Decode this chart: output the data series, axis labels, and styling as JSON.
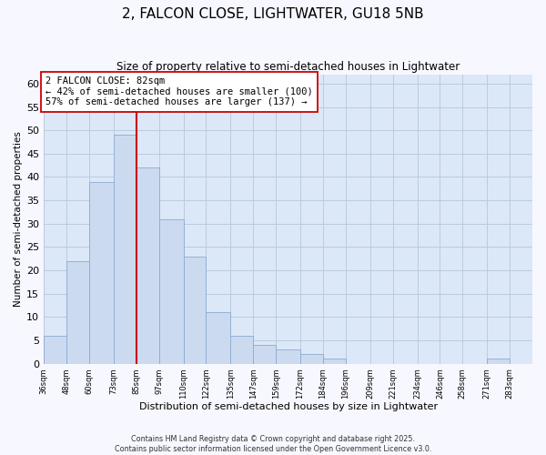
{
  "title": "2, FALCON CLOSE, LIGHTWATER, GU18 5NB",
  "subtitle": "Size of property relative to semi-detached houses in Lightwater",
  "xlabel": "Distribution of semi-detached houses by size in Lightwater",
  "ylabel": "Number of semi-detached properties",
  "bin_labels": [
    "36sqm",
    "48sqm",
    "60sqm",
    "73sqm",
    "85sqm",
    "97sqm",
    "110sqm",
    "122sqm",
    "135sqm",
    "147sqm",
    "159sqm",
    "172sqm",
    "184sqm",
    "196sqm",
    "209sqm",
    "221sqm",
    "234sqm",
    "246sqm",
    "258sqm",
    "271sqm",
    "283sqm"
  ],
  "bin_edges": [
    36,
    48,
    60,
    73,
    85,
    97,
    110,
    122,
    135,
    147,
    159,
    172,
    184,
    196,
    209,
    221,
    234,
    246,
    258,
    271,
    283,
    295
  ],
  "counts": [
    6,
    22,
    39,
    49,
    42,
    31,
    23,
    11,
    6,
    4,
    3,
    2,
    1,
    0,
    0,
    0,
    0,
    0,
    0,
    1,
    0
  ],
  "bar_color": "#ccdaf0",
  "bar_edge_color": "#8aaad4",
  "vline_x_index": 4,
  "vline_color": "#cc0000",
  "annotation_line1": "2 FALCON CLOSE: 82sqm",
  "annotation_line2": "← 42% of semi-detached houses are smaller (100)",
  "annotation_line3": "57% of semi-detached houses are larger (137) →",
  "annotation_box_color": "#ffffff",
  "annotation_box_edge": "#cc0000",
  "ylim": [
    0,
    62
  ],
  "xlim_left": 36,
  "xlim_right": 295,
  "yticks": [
    0,
    5,
    10,
    15,
    20,
    25,
    30,
    35,
    40,
    45,
    50,
    55,
    60
  ],
  "footer_line1": "Contains HM Land Registry data © Crown copyright and database right 2025.",
  "footer_line2": "Contains public sector information licensed under the Open Government Licence v3.0.",
  "bg_color": "#f7f7ff",
  "plot_bg_color": "#dce8f8",
  "grid_color": "#b8ccde"
}
